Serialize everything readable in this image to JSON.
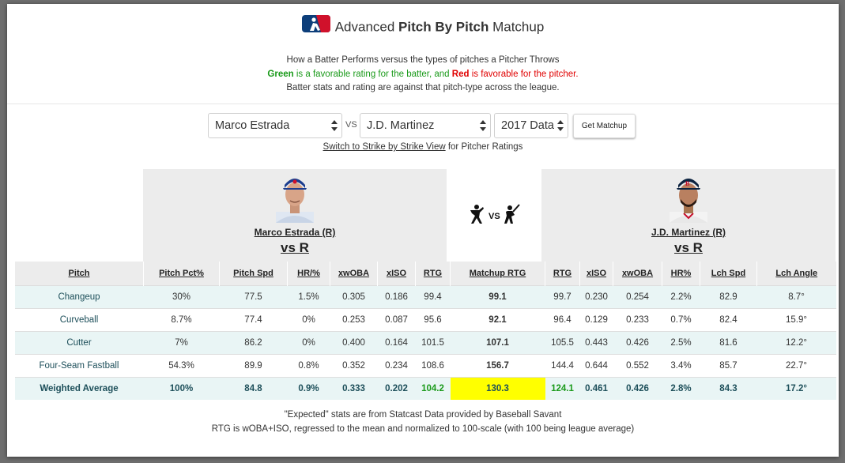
{
  "header": {
    "title_pre": "Advanced ",
    "title_bold": "Pitch By Pitch",
    "title_post": " Matchup",
    "line1": "How a Batter Performs versus the types of pitches a Pitcher Throws",
    "line2_green": "Green",
    "line2_mid": " is a favorable rating for the batter, and ",
    "line2_red": "Red",
    "line2_end": " is favorable for the pitcher.",
    "line3": "Batter stats and rating are against that pitch-type across the league."
  },
  "controls": {
    "pitcher_select": "Marco Estrada",
    "vs_label": "VS",
    "batter_select": "J.D. Martinez",
    "year_select": "2017 Data",
    "button_label": "Get Matchup",
    "switch_link": "Switch to Strike by Strike View",
    "switch_rest": " for Pitcher Ratings"
  },
  "pitcher": {
    "name": "Marco Estrada (R)",
    "vs": "vs R"
  },
  "batter": {
    "name": "J.D. Martinez (R)",
    "vs": "vs R"
  },
  "matchup_vs": "VS",
  "colors": {
    "green": "#1a9a1a",
    "red": "#e00000",
    "highlight": "#ffff00",
    "row_alt": "#e9f5f5"
  },
  "table": {
    "headers": [
      "Pitch",
      "Pitch Pct%",
      "Pitch Spd",
      "HR/%",
      "xwOBA",
      "xISO",
      "RTG",
      "Matchup RTG",
      "RTG",
      "xISO",
      "xwOBA",
      "HR%",
      "Lch Spd",
      "Lch Angle"
    ],
    "rows": [
      {
        "pitch": "Changeup",
        "pct": "30%",
        "spd": "77.5",
        "hr": "1.5%",
        "xwoba": "0.305",
        "xiso": "0.186",
        "prtg": "99.4",
        "mrtg": "99.1",
        "brtg": "99.7",
        "bxiso": "0.230",
        "bxwoba": "0.254",
        "bhr": "2.2%",
        "lspd": "82.9",
        "lang": "8.7°"
      },
      {
        "pitch": "Curveball",
        "pct": "8.7%",
        "spd": "77.4",
        "hr": "0%",
        "xwoba": "0.253",
        "xiso": "0.087",
        "prtg": "95.6",
        "mrtg": "92.1",
        "brtg": "96.4",
        "bxiso": "0.129",
        "bxwoba": "0.233",
        "bhr": "0.7%",
        "lspd": "82.4",
        "lang": "15.9°"
      },
      {
        "pitch": "Cutter",
        "pct": "7%",
        "spd": "86.2",
        "hr": "0%",
        "xwoba": "0.400",
        "xiso": "0.164",
        "prtg": "101.5",
        "mrtg": "107.1",
        "brtg": "105.5",
        "bxiso": "0.443",
        "bxwoba": "0.426",
        "bhr": "2.5%",
        "lspd": "81.6",
        "lang": "12.2°"
      },
      {
        "pitch": "Four-Seam Fastball",
        "pct": "54.3%",
        "spd": "89.9",
        "hr": "0.8%",
        "xwoba": "0.352",
        "xiso": "0.234",
        "prtg": "108.6",
        "mrtg": "156.7",
        "brtg": "144.4",
        "bxiso": "0.644",
        "bxwoba": "0.552",
        "bhr": "3.4%",
        "lspd": "85.7",
        "lang": "22.7°"
      }
    ],
    "weighted": {
      "pitch": "Weighted Average",
      "pct": "100%",
      "spd": "84.8",
      "hr": "0.9%",
      "xwoba": "0.333",
      "xiso": "0.202",
      "prtg": "104.2",
      "mrtg": "130.3",
      "brtg": "124.1",
      "bxiso": "0.461",
      "bxwoba": "0.426",
      "bhr": "2.8%",
      "lspd": "84.3",
      "lang": "17.2°"
    }
  },
  "footer": {
    "line1": "\"Expected\" stats are from Statcast Data provided by Baseball Savant",
    "line2": "RTG is wOBA+ISO, regressed to the mean and normalized to 100-scale (with 100 being league average)"
  }
}
